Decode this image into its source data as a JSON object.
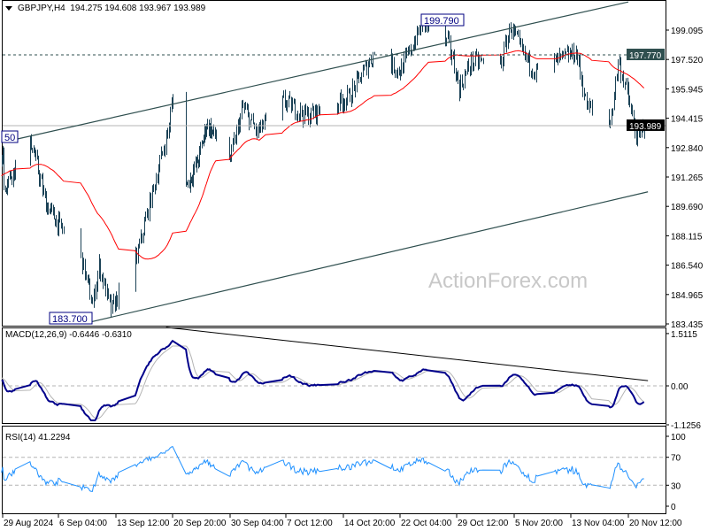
{
  "header": {
    "symbol": "GBPJPY,H4",
    "ohlc": "194.275 194.608 193.967 193.989",
    "menu_icon": "triangle-down-icon"
  },
  "watermark": "ActionForex.com",
  "colors": {
    "bars": "#1b4256",
    "ma": "#ff0000",
    "macd_main": "#00008b",
    "macd_signal": "#b4b4b4",
    "rsi": "#1e90ff",
    "trendline": "#2f4f4f",
    "current_price_bg": "#000000",
    "level_bg": "#2f4f4f"
  },
  "chart_data": [
    {
      "type": "bar",
      "title": "GBPJPY,H4",
      "price_axis_ticks": [
        "199.095",
        "197.520",
        "195.945",
        "194.415",
        "192.840",
        "191.265",
        "189.690",
        "188.115",
        "186.540",
        "184.965",
        "183.435"
      ],
      "ylim": [
        183.435,
        200.7
      ],
      "time_axis_ticks": [
        "29 Aug 2024",
        "6 Sep 04:00",
        "13 Sep 12:00",
        "20 Sep 20:00",
        "30 Sep 04:00",
        "7 Oct 12:00",
        "14 Oct 20:00",
        "22 Oct 04:00",
        "29 Oct 12:00",
        "5 Nov 20:00",
        "13 Nov 04:00",
        "20 Nov 12:00"
      ],
      "time_axis_dates": [
        "2024-08-29 00:00",
        "2024-09-06 04:00",
        "2024-09-13 12:00",
        "2024-09-20 20:00",
        "2024-09-30 04:00",
        "2024-10-07 12:00",
        "2024-10-14 20:00",
        "2024-10-22 04:00",
        "2024-10-29 12:00",
        "2024-11-05 20:00",
        "2024-11-13 04:00",
        "2024-11-20 12:00"
      ],
      "price_path": [
        [
          "2024-08-29 04:00",
          190.8
        ],
        [
          "2024-09-02 04:00",
          193.1
        ],
        [
          "2024-09-04 08:00",
          189.8
        ],
        [
          "2024-09-09 00:00",
          187.0
        ],
        [
          "2024-09-10 12:00",
          184.4
        ],
        [
          "2024-09-11 08:00",
          186.5
        ],
        [
          "2024-09-12 20:00",
          184.1
        ],
        [
          "2024-09-16 04:00",
          187.0
        ],
        [
          "2024-09-18 16:00",
          191.2
        ],
        [
          "2024-09-20 04:00",
          193.6
        ],
        [
          "2024-09-20 20:00",
          195.5
        ],
        [
          "2024-09-23 04:00",
          190.8
        ],
        [
          "2024-09-25 00:00",
          192.2
        ],
        [
          "2024-09-26 08:00",
          194.1
        ],
        [
          "2024-09-30 04:00",
          192.2
        ],
        [
          "2024-10-01 20:00",
          195.0
        ],
        [
          "2024-10-03 16:00",
          193.6
        ],
        [
          "2024-10-07 04:00",
          195.3
        ],
        [
          "2024-10-10 04:00",
          194.5
        ],
        [
          "2024-10-15 12:00",
          195.5
        ],
        [
          "2024-10-18 20:00",
          197.9
        ],
        [
          "2024-10-22 04:00",
          196.9
        ],
        [
          "2024-10-25 04:00",
          199.5
        ],
        [
          "2024-10-28 12:00",
          198.3
        ],
        [
          "2024-10-29 20:00",
          196.0
        ],
        [
          "2024-10-31 08:00",
          197.4
        ],
        [
          "2024-11-04 04:00",
          197.4
        ],
        [
          "2024-11-05 08:00",
          199.3
        ],
        [
          "2024-11-06 20:00",
          197.9
        ],
        [
          "2024-11-08 12:00",
          196.9
        ],
        [
          "2024-11-12 04:00",
          197.6
        ],
        [
          "2024-11-13 20:00",
          197.9
        ],
        [
          "2024-11-15 04:00",
          195.0
        ],
        [
          "2024-11-18 04:00",
          194.1
        ],
        [
          "2024-11-19 04:00",
          197.4
        ],
        [
          "2024-11-20 04:00",
          196.0
        ],
        [
          "2024-11-21 16:00",
          193.1
        ],
        [
          "2024-11-22 12:00",
          193.989
        ]
      ],
      "moving_average": {
        "color": "#ff0000"
      },
      "annotations": {
        "high_label": "199.790",
        "high_value": 199.79,
        "low_label": "183.700",
        "low_value": 183.7,
        "left_label": "50",
        "left_value": 193.1,
        "resistance_level_label": "197.770",
        "resistance_level": 197.77,
        "current_price_label": "193.989",
        "current_price": 193.989
      },
      "channel_upper": [
        [
          "2024-08-29 00:00",
          193.1
        ],
        [
          "2024-11-20 12:00",
          200.6
        ]
      ],
      "channel_lower": [
        [
          "2024-09-10 08:00",
          183.5
        ],
        [
          "2024-11-23 00:00",
          190.45
        ]
      ]
    },
    {
      "type": "line",
      "title": "MACD(12,26,9) -0.6446 -0.6310",
      "axis_ticks": [
        "1.5115",
        "0.00",
        "-1.1256"
      ],
      "ylim": [
        -1.1256,
        1.5115
      ],
      "trendline": [
        [
          "2024-09-20 00:00",
          1.69
        ],
        [
          "2024-11-23 00:00",
          0.15
        ]
      ]
    },
    {
      "type": "line",
      "title": "RSI(14) 41.2294",
      "axis_ticks": [
        "100",
        "70",
        "30",
        "0"
      ],
      "ylim": [
        0,
        100
      ],
      "levels": [
        70,
        30
      ]
    }
  ]
}
